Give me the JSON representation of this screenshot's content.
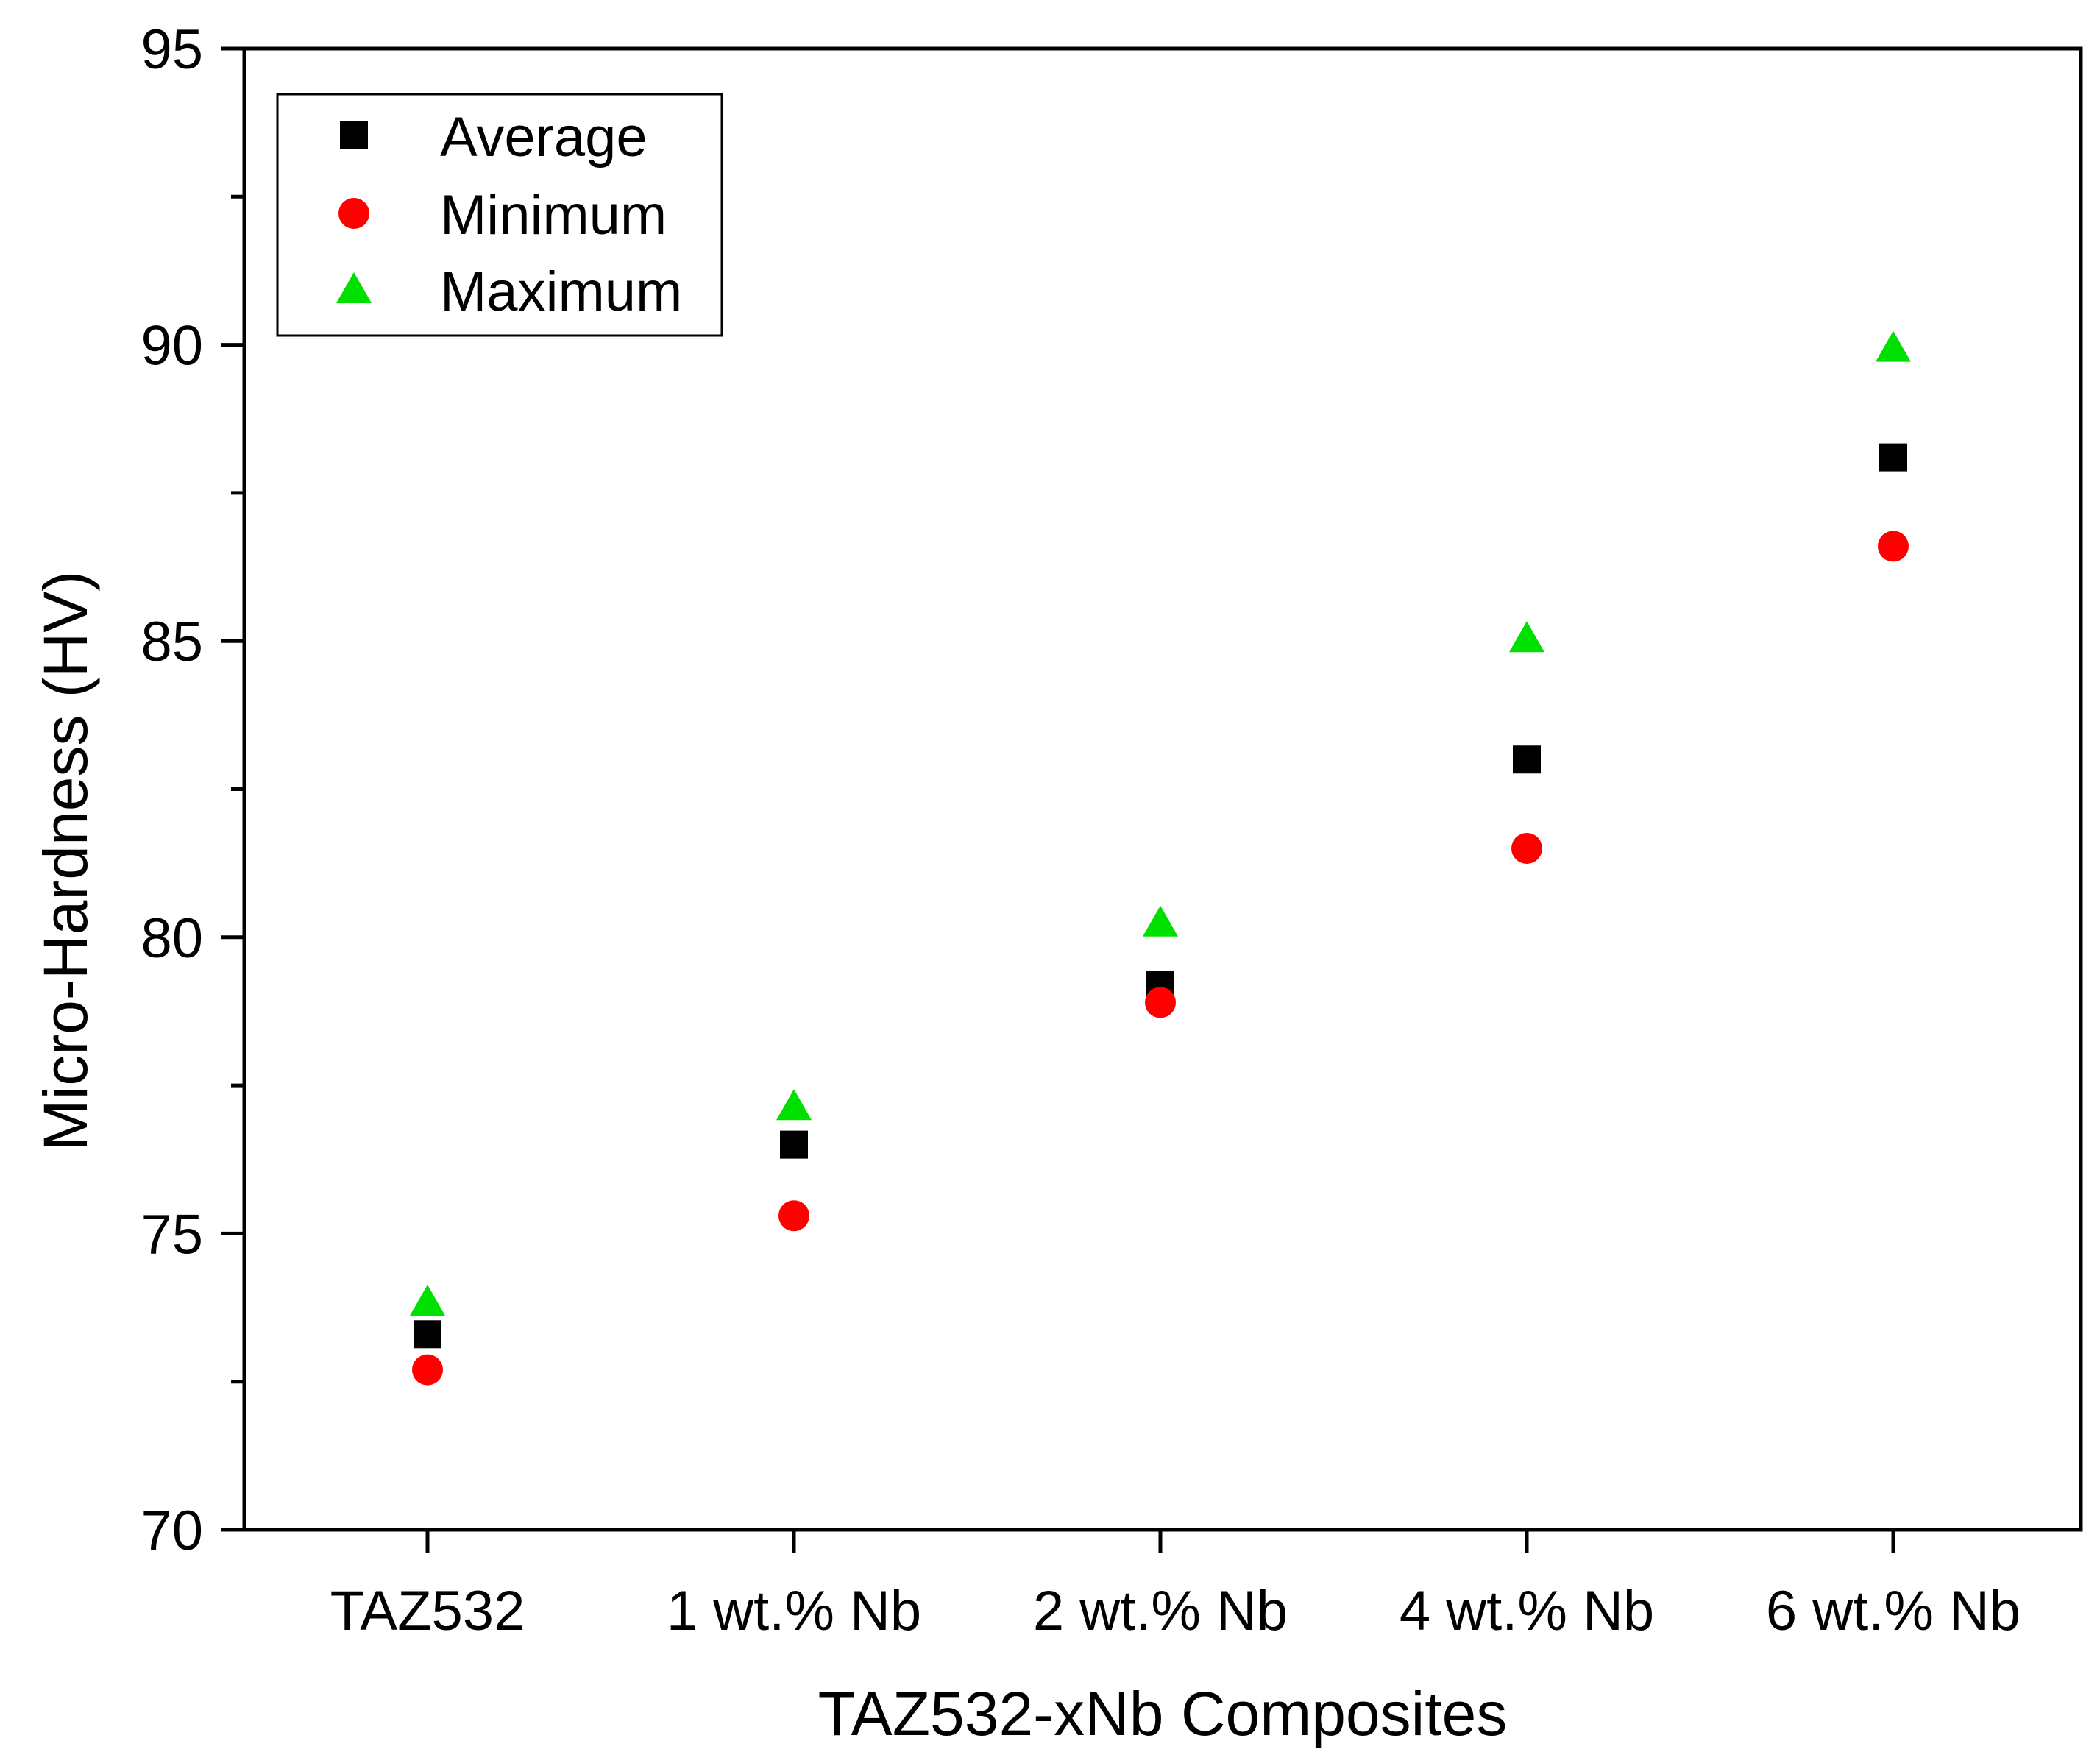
{
  "chart_data": {
    "type": "scatter",
    "title": "",
    "xlabel": "TAZ532-xNb Composites",
    "ylabel": "Micro-Hardness (HV)",
    "categories": [
      "TAZ532",
      "1 wt.% Nb",
      "2 wt.% Nb",
      "4 wt.% Nb",
      "6 wt.% Nb"
    ],
    "ylim": [
      70,
      95
    ],
    "yticks": [
      "70",
      "75",
      "80",
      "85",
      "90",
      "95"
    ],
    "legend_position": "top-left",
    "series": [
      {
        "name": "Average",
        "marker": "square",
        "color": "#000000",
        "values": [
          73.3,
          76.5,
          79.2,
          83.0,
          88.1
        ]
      },
      {
        "name": "Minimum",
        "marker": "circle",
        "color": "#ff0000",
        "values": [
          72.7,
          75.3,
          78.9,
          81.5,
          86.6
        ]
      },
      {
        "name": "Maximum",
        "marker": "triangle",
        "color": "#00e000",
        "values": [
          73.8,
          77.1,
          80.2,
          85.0,
          89.9
        ]
      }
    ]
  }
}
